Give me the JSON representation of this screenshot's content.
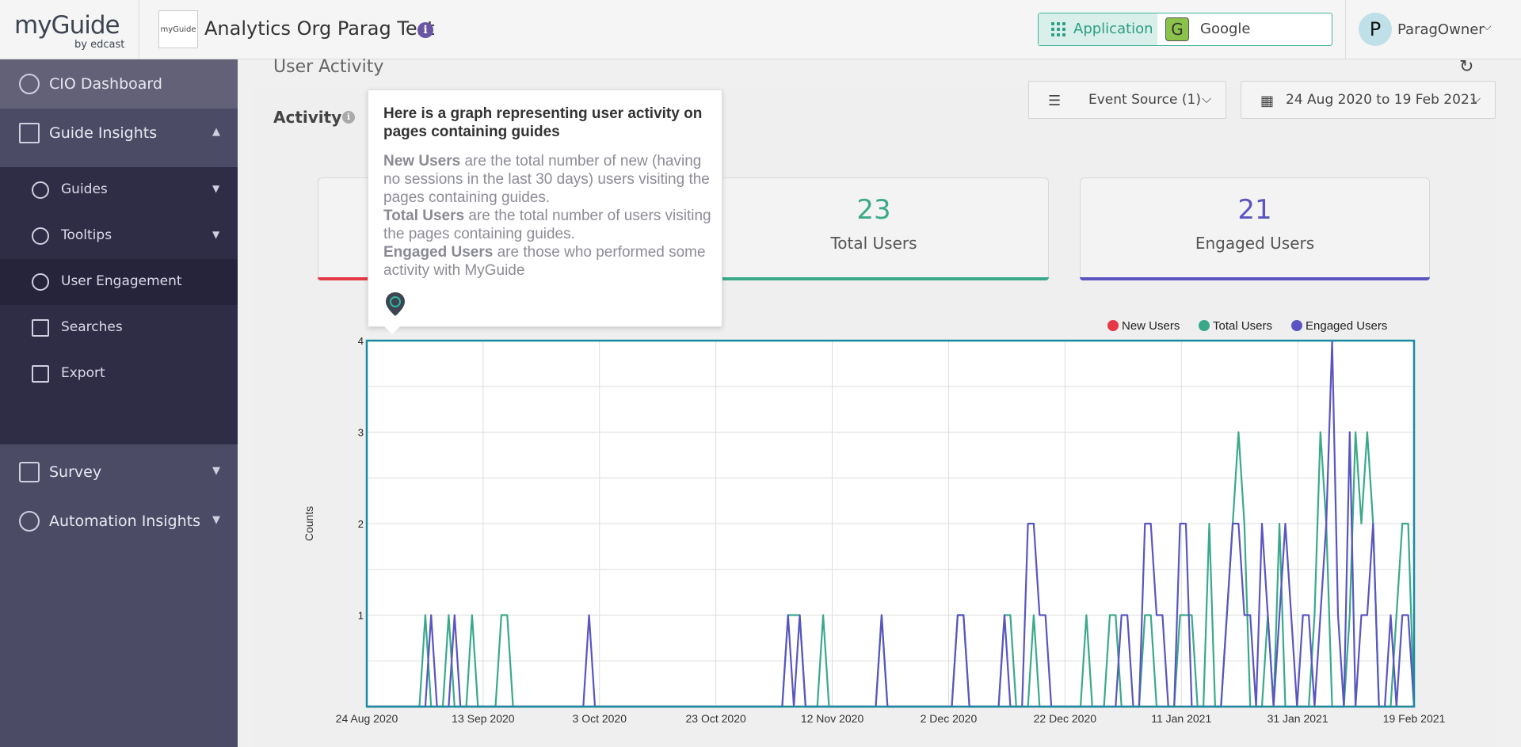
{
  "header": {
    "logo_text": "myGuide",
    "logo_sub": "by edcast",
    "org_logo_text": "myGuide",
    "org_name": "Analytics Org Parag Test",
    "info_icon": "info-icon",
    "app_switch_label": "Application",
    "app_selected": "Google",
    "app_badge": "G",
    "user_initial": "P",
    "user_name": "ParagOwner"
  },
  "sidebar": {
    "items": [
      {
        "label": "CIO Dashboard",
        "icon": "gauge-icon"
      },
      {
        "label": "Guide Insights",
        "icon": "chart-icon",
        "expanded": true
      },
      {
        "label": "Survey",
        "icon": "survey-icon"
      },
      {
        "label": "Automation Insights",
        "icon": "gear-icon"
      }
    ],
    "sub_items": [
      {
        "label": "Guides",
        "icon": "compass-icon"
      },
      {
        "label": "Tooltips",
        "icon": "tooltip-icon"
      },
      {
        "label": "User Engagement",
        "icon": "user-search-icon",
        "active": true
      },
      {
        "label": "Searches",
        "icon": "document-search-icon"
      },
      {
        "label": "Export",
        "icon": "export-icon"
      }
    ]
  },
  "main": {
    "section_title": "User Activity",
    "activity_label": "Activity",
    "event_source": "Event Source (1)",
    "date_range": "24 Aug 2020 to 19 Feb 2021",
    "stats": [
      {
        "value": "",
        "label": "",
        "color": "#e53946"
      },
      {
        "value": "23",
        "label": "Total Users",
        "color": "#3aa98a"
      },
      {
        "value": "21",
        "label": "Engaged Users",
        "color": "#5a55c0"
      }
    ]
  },
  "tooltip": {
    "title": "Here is a graph representing user activity on pages containing guides",
    "new_users_term": "New Users",
    "new_users_text": " are the total number of new (having no sessions in the last 30 days) users visiting the pages containing guides.",
    "total_users_term": "Total Users",
    "total_users_text": " are the total number of users visiting the pages containing guides.",
    "engaged_users_term": "Engaged Users",
    "engaged_users_text": " are those who performed some activity with MyGuide"
  },
  "chart_data": {
    "type": "line",
    "ylabel": "Counts",
    "xlabel": "",
    "ylim": [
      0,
      4
    ],
    "y_ticks": [
      1,
      2,
      3,
      4
    ],
    "x_tick_labels": [
      "24 Aug 2020",
      "13 Sep 2020",
      "3 Oct 2020",
      "23 Oct 2020",
      "12 Nov 2020",
      "2 Dec 2020",
      "22 Dec 2020",
      "11 Jan 2021",
      "31 Jan 2021",
      "19 Feb 2021"
    ],
    "x_start": "2020-08-24",
    "x_days": 179,
    "legend": [
      "New Users",
      "Total Users",
      "Engaged Users"
    ],
    "series": [
      {
        "name": "New Users",
        "color": "#e53946",
        "points": []
      },
      {
        "name": "Total Users",
        "color": "#3aa98a",
        "points": [
          [
            10,
            1
          ],
          [
            14,
            1
          ],
          [
            18,
            1
          ],
          [
            23,
            1
          ],
          [
            24,
            1
          ],
          [
            72,
            1
          ],
          [
            73,
            1
          ],
          [
            74,
            1
          ],
          [
            78,
            1
          ],
          [
            88,
            1
          ],
          [
            101,
            1
          ],
          [
            102,
            1
          ],
          [
            109,
            1
          ],
          [
            110,
            1
          ],
          [
            114,
            1
          ],
          [
            123,
            1
          ],
          [
            127,
            1
          ],
          [
            128,
            1
          ],
          [
            133,
            1
          ],
          [
            134,
            1
          ],
          [
            139,
            1
          ],
          [
            140,
            1
          ],
          [
            141,
            1
          ],
          [
            144,
            2
          ],
          [
            147,
            1
          ],
          [
            148,
            2
          ],
          [
            149,
            3
          ],
          [
            150,
            2
          ],
          [
            154,
            1
          ],
          [
            156,
            2
          ],
          [
            162,
            1
          ],
          [
            163,
            3
          ],
          [
            164,
            2
          ],
          [
            168,
            1
          ],
          [
            169,
            3
          ],
          [
            170,
            2
          ],
          [
            171,
            3
          ],
          [
            172,
            2
          ],
          [
            176,
            1
          ],
          [
            177,
            2
          ],
          [
            178,
            2
          ]
        ]
      },
      {
        "name": "Engaged Users",
        "color": "#5a55c0",
        "points": [
          [
            11,
            1
          ],
          [
            15,
            1
          ],
          [
            38,
            1
          ],
          [
            72,
            1
          ],
          [
            74,
            1
          ],
          [
            88,
            1
          ],
          [
            101,
            1
          ],
          [
            102,
            1
          ],
          [
            109,
            1
          ],
          [
            113,
            2
          ],
          [
            114,
            2
          ],
          [
            115,
            1
          ],
          [
            116,
            1
          ],
          [
            129,
            1
          ],
          [
            130,
            1
          ],
          [
            133,
            2
          ],
          [
            134,
            2
          ],
          [
            135,
            1
          ],
          [
            136,
            1
          ],
          [
            139,
            2
          ],
          [
            140,
            2
          ],
          [
            147,
            1
          ],
          [
            148,
            2
          ],
          [
            149,
            2
          ],
          [
            150,
            1
          ],
          [
            151,
            1
          ],
          [
            153,
            2
          ],
          [
            154,
            1
          ],
          [
            156,
            1
          ],
          [
            157,
            2
          ],
          [
            158,
            1
          ],
          [
            160,
            1
          ],
          [
            161,
            1
          ],
          [
            163,
            1
          ],
          [
            164,
            2
          ],
          [
            165,
            4
          ],
          [
            166,
            1
          ],
          [
            168,
            3
          ],
          [
            170,
            1
          ],
          [
            171,
            1
          ],
          [
            172,
            2
          ],
          [
            175,
            1
          ],
          [
            177,
            1
          ],
          [
            178,
            1
          ]
        ]
      }
    ],
    "colors": {
      "plot_border": "#1a8aa0",
      "grid": "#dddddd"
    }
  }
}
